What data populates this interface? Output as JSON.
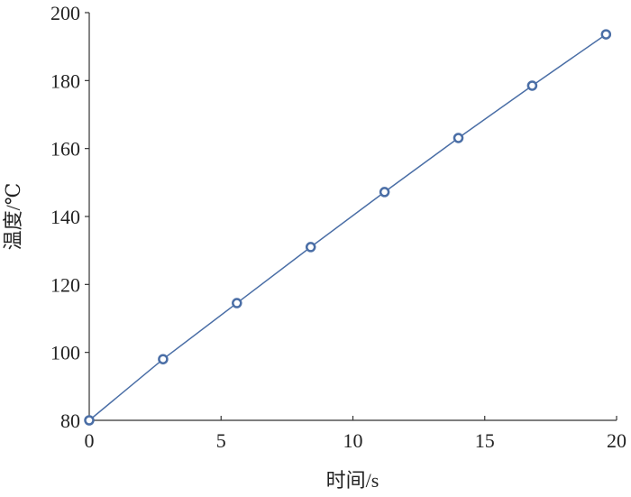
{
  "chart_data": {
    "type": "line",
    "x_label": "时间/s",
    "y_label": "温度/℃",
    "x": [
      0,
      2.8,
      5.6,
      8.4,
      11.2,
      14,
      16.8,
      19.6
    ],
    "series": [
      {
        "name": "温度",
        "color": "#4a6ea6",
        "values": [
          80,
          98,
          114.5,
          131,
          147.2,
          163.1,
          178.5,
          193.6
        ]
      }
    ],
    "xlim": [
      0,
      20
    ],
    "xticks": [
      0,
      5,
      10,
      15,
      20
    ],
    "ylim": [
      80,
      200
    ],
    "yticks": [
      80,
      100,
      120,
      140,
      160,
      180,
      200
    ],
    "markers": true,
    "grid": false
  }
}
